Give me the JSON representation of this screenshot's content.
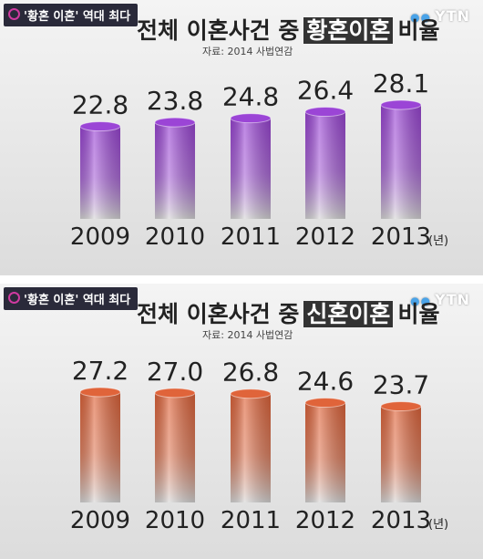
{
  "chart_data": [
    {
      "type": "bar",
      "badge": "'황혼 이혼' 역대 최다",
      "logo": "YTN",
      "title": "전체 이혼사건 중",
      "title_highlight": "황혼이혼",
      "title_suffix": "비율",
      "source": "자료: 2014 사법연감",
      "categories": [
        "2009",
        "2010",
        "2011",
        "2012",
        "2013"
      ],
      "x_unit": "(년)",
      "values": [
        22.8,
        23.8,
        24.8,
        26.4,
        28.1
      ],
      "color": "#9b45d6"
    },
    {
      "type": "bar",
      "badge": "'황혼 이혼' 역대 최다",
      "logo": "YTN",
      "title": "전체 이혼사건 중",
      "title_highlight": "신혼이혼",
      "title_suffix": "비율",
      "source": "자료: 2014 사법연감",
      "categories": [
        "2009",
        "2010",
        "2011",
        "2012",
        "2013"
      ],
      "x_unit": "(년)",
      "values": [
        27.2,
        27.0,
        26.8,
        24.6,
        23.7
      ],
      "value_labels": [
        "27.2",
        "27.0",
        "26.8",
        "24.6",
        "23.7"
      ],
      "color": "#e0643a"
    }
  ]
}
